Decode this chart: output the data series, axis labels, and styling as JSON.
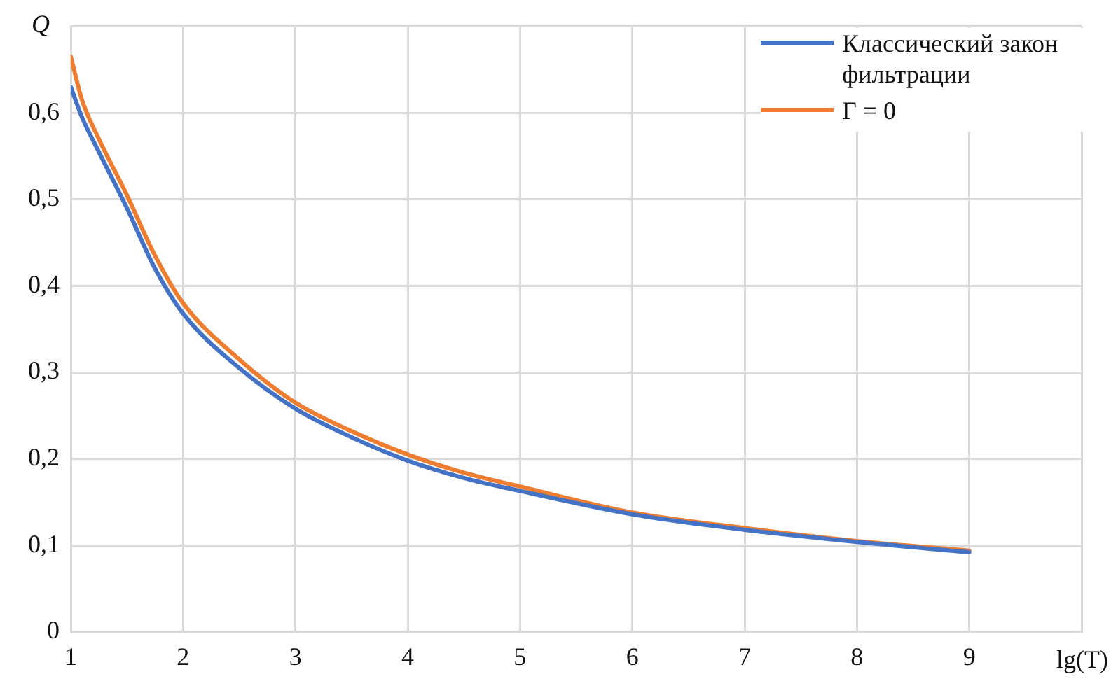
{
  "chart_data": {
    "type": "line",
    "xlabel": "lg(T)",
    "ylabel": "Q",
    "xlim": [
      1,
      10
    ],
    "xticks": [
      1,
      2,
      3,
      4,
      5,
      6,
      7,
      8,
      9,
      {
        "value": 10,
        "label": null
      }
    ],
    "ylim": [
      0,
      0.7
    ],
    "yticks": [
      {
        "value": 0,
        "label": "0"
      },
      {
        "value": 0.1,
        "label": "0,1"
      },
      {
        "value": 0.2,
        "label": "0,2"
      },
      {
        "value": 0.3,
        "label": "0,3"
      },
      {
        "value": 0.4,
        "label": "0,4"
      },
      {
        "value": 0.5,
        "label": "0,5"
      },
      {
        "value": 0.6,
        "label": "0,6"
      },
      {
        "value": 0.7,
        "label": null
      }
    ],
    "grid": true,
    "legend": "top right",
    "marker": "none",
    "line_style": "solid",
    "x": [
      1,
      1.1,
      1.25,
      1.5,
      1.75,
      2,
      2.5,
      3,
      3.5,
      4,
      4.5,
      5,
      6,
      7,
      8,
      9
    ],
    "series": [
      {
        "name": "Классический закон фильтрации",
        "color": "#4472c4",
        "values": [
          0.63,
          0.595,
          0.555,
          0.49,
          0.42,
          0.368,
          0.305,
          0.258,
          0.225,
          0.198,
          0.178,
          0.163,
          0.136,
          0.118,
          0.104,
          0.092
        ]
      },
      {
        "name": "Γ = 0",
        "color": "#ed7d31",
        "values": [
          0.665,
          0.615,
          0.57,
          0.505,
          0.435,
          0.38,
          0.315,
          0.265,
          0.232,
          0.205,
          0.184,
          0.168,
          0.138,
          0.12,
          0.105,
          0.094
        ]
      }
    ]
  }
}
